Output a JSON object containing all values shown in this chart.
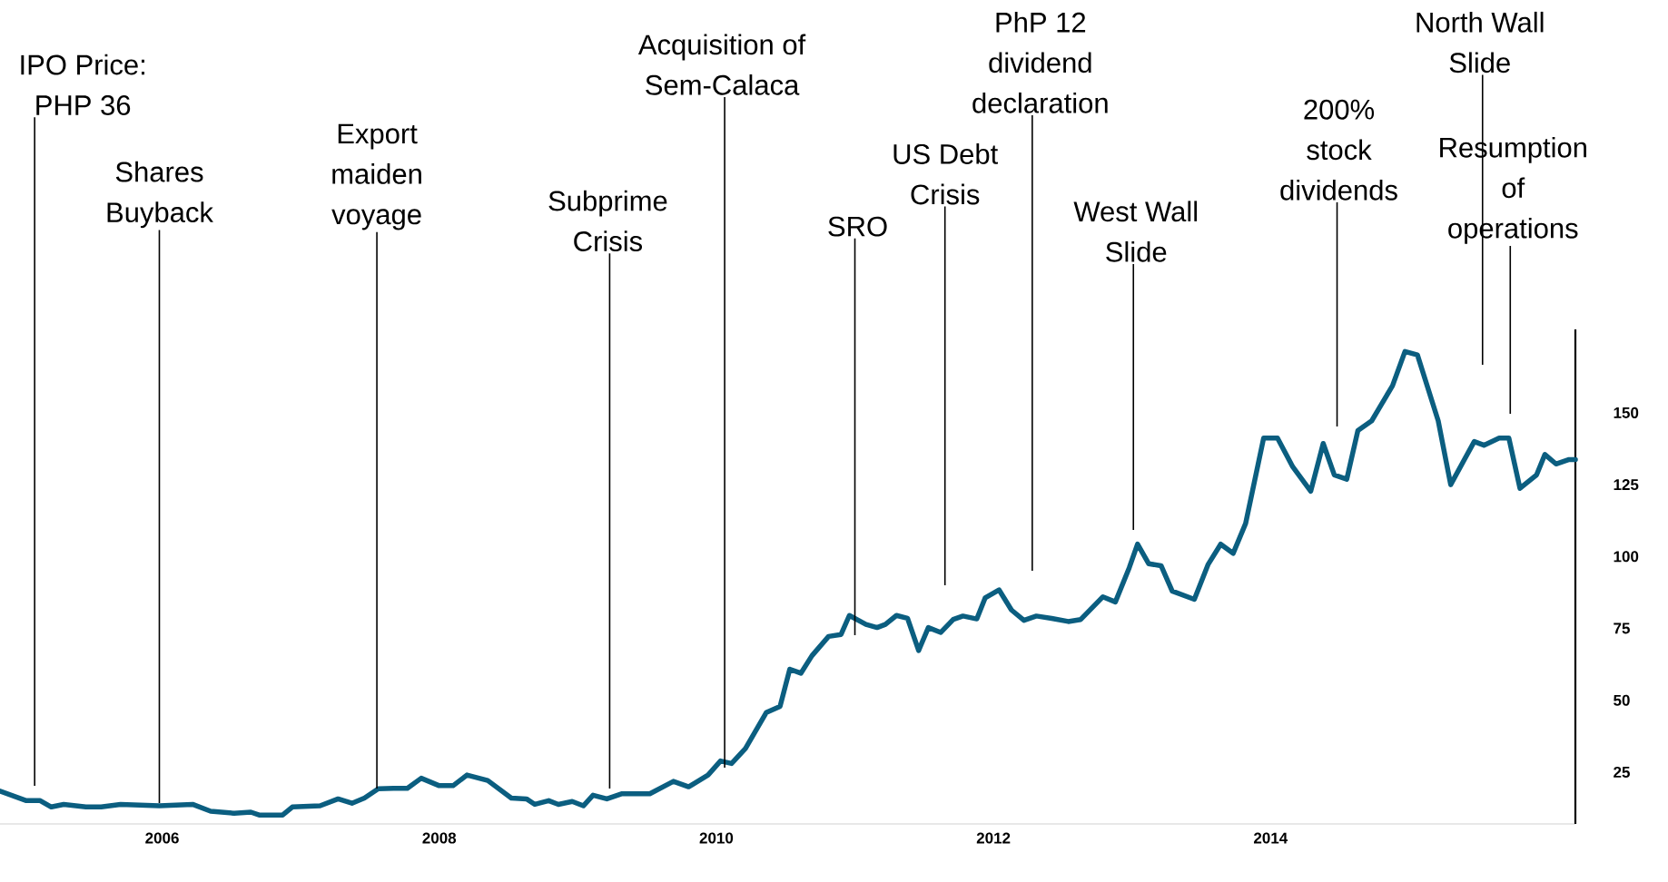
{
  "chart_data": {
    "type": "line",
    "xlim": [
      2004.83,
      2016.2
    ],
    "ylim": [
      7,
      179
    ],
    "xticks": [
      2006,
      2008,
      2010,
      2012,
      2014
    ],
    "yticks": [
      25,
      50,
      75,
      100,
      125,
      150
    ],
    "series": [
      {
        "color": "#0b5e80",
        "x": [
          2004.83,
          2005.02,
          2005.12,
          2005.2,
          2005.29,
          2005.45,
          2005.56,
          2005.7,
          2005.98,
          2006.22,
          2006.35,
          2006.52,
          2006.64,
          2006.7,
          2006.87,
          2006.94,
          2007.14,
          2007.27,
          2007.37,
          2007.46,
          2007.56,
          2007.67,
          2007.77,
          2007.87,
          2008.0,
          2008.1,
          2008.2,
          2008.35,
          2008.52,
          2008.63,
          2008.69,
          2008.79,
          2008.86,
          2008.96,
          2009.04,
          2009.11,
          2009.21,
          2009.32,
          2009.52,
          2009.69,
          2009.8,
          2009.94,
          2010.03,
          2010.11,
          2010.21,
          2010.36,
          2010.46,
          2010.53,
          2010.61,
          2010.69,
          2010.81,
          2010.9,
          2010.96,
          2011.08,
          2011.16,
          2011.22,
          2011.3,
          2011.38,
          2011.46,
          2011.53,
          2011.62,
          2011.71,
          2011.78,
          2011.88,
          2011.94,
          2012.04,
          2012.13,
          2012.22,
          2012.31,
          2012.42,
          2012.54,
          2012.63,
          2012.79,
          2012.88,
          2012.98,
          2013.04,
          2013.12,
          2013.21,
          2013.29,
          2013.45,
          2013.55,
          2013.64,
          2013.73,
          2013.82,
          2013.95,
          2014.05,
          2014.16,
          2014.29,
          2014.38,
          2014.46,
          2014.55,
          2014.63,
          2014.73,
          2014.88,
          2014.97,
          2015.06,
          2015.21,
          2015.3,
          2015.47,
          2015.54,
          2015.65,
          2015.72,
          2015.8,
          2015.92,
          2015.98,
          2016.06,
          2016.15,
          2016.2
        ],
        "values": [
          18.4,
          15.1,
          15.1,
          12.9,
          13.8,
          12.9,
          12.9,
          13.8,
          13.3,
          13.8,
          11.4,
          10.7,
          11.1,
          10.1,
          10.1,
          12.9,
          13.3,
          15.7,
          14.2,
          16.0,
          19.2,
          19.4,
          19.4,
          22.9,
          20.3,
          20.3,
          24.0,
          22.1,
          16.0,
          15.7,
          13.8,
          15.1,
          13.8,
          14.8,
          13.3,
          17.0,
          15.7,
          17.5,
          17.5,
          21.8,
          19.9,
          24.0,
          28.9,
          28.0,
          33.2,
          45.7,
          47.9,
          60.8,
          59.4,
          65.5,
          72.2,
          72.9,
          79.5,
          76.4,
          75.3,
          76.4,
          79.5,
          78.5,
          67.3,
          75.3,
          73.6,
          78.1,
          79.3,
          78.3,
          85.6,
          88.4,
          81.4,
          77.8,
          79.3,
          78.5,
          77.4,
          78.1,
          86.0,
          84.2,
          96.1,
          104.3,
          97.5,
          96.8,
          88.0,
          85.1,
          97.3,
          104.3,
          101.1,
          111.5,
          141.2,
          141.2,
          131.2,
          122.7,
          139.3,
          128.4,
          126.9,
          143.8,
          147.2,
          159.4,
          171.3,
          170.1,
          147.2,
          125.0,
          140.0,
          138.7,
          141.2,
          141.2,
          123.7,
          128.4,
          135.5,
          132.2,
          133.7,
          133.7
        ]
      }
    ],
    "ref_lines": [
      {
        "axis": "x",
        "value": 2005.08,
        "label": "IPO Price: PHP 36"
      },
      {
        "axis": "x",
        "value": 2005.98,
        "label": "Shares Buyback"
      },
      {
        "axis": "x",
        "value": 2007.55,
        "label": "Export maiden voyage"
      },
      {
        "axis": "x",
        "value": 2009.23,
        "label": "Subprime Crisis"
      },
      {
        "axis": "x",
        "value": 2010.06,
        "label": "Acquisition of Sem-Calaca"
      },
      {
        "axis": "x",
        "value": 2011.0,
        "label": "SRO"
      },
      {
        "axis": "x",
        "value": 2011.65,
        "label": "US Debt Crisis"
      },
      {
        "axis": "x",
        "value": 2012.28,
        "label": "PhP 12 dividend declaration"
      },
      {
        "axis": "x",
        "value": 2013.01,
        "label": "West Wall Slide"
      },
      {
        "axis": "x",
        "value": 2014.48,
        "label": "200% stock dividends"
      },
      {
        "axis": "x",
        "value": 2015.53,
        "label": "North Wall Slide"
      },
      {
        "axis": "x",
        "value": 2015.73,
        "label": "Resumption of operations"
      }
    ]
  }
}
